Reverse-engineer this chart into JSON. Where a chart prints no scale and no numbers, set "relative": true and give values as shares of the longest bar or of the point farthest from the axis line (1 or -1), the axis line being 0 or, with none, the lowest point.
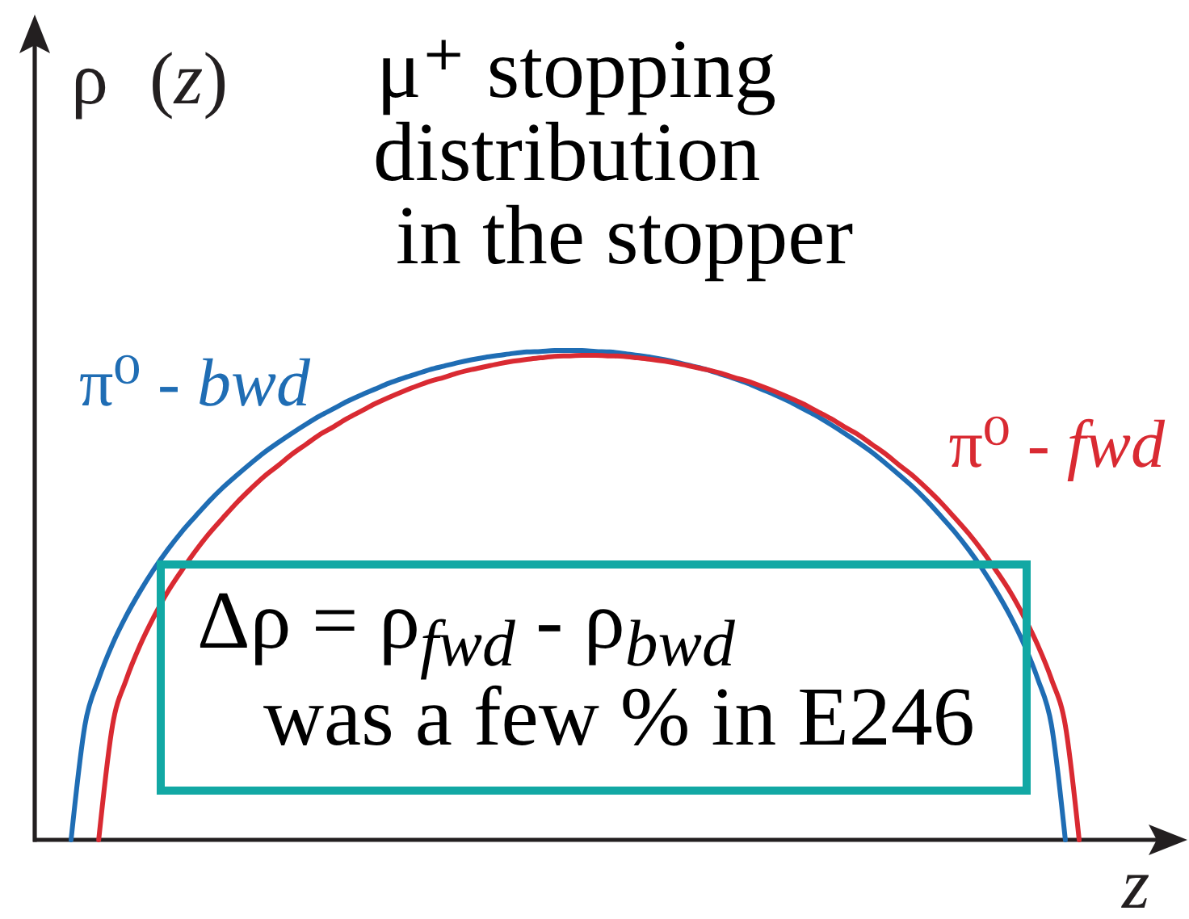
{
  "chart_data": {
    "type": "line",
    "relative": true,
    "title": "μ⁺ stopping\ndistribution\nin the stopper",
    "xlabel": "z",
    "ylabel": "ρ (z)",
    "categories": [
      null,
      null,
      null,
      null,
      null,
      null,
      null,
      null,
      null,
      null,
      null,
      null,
      null,
      null,
      null,
      null,
      null,
      null,
      null,
      null,
      null,
      null,
      null,
      null,
      null,
      null,
      null,
      null,
      null,
      null,
      null,
      null,
      null,
      null,
      null,
      null,
      null,
      null,
      null,
      null,
      null,
      null,
      null,
      null,
      null,
      null,
      null,
      null,
      null,
      null,
      null,
      null,
      null,
      null,
      null,
      null,
      null,
      null,
      null,
      null,
      null,
      null,
      null,
      null,
      null,
      null,
      null,
      null,
      null,
      null,
      null,
      null,
      null,
      null
    ],
    "series": [
      {
        "name": "π⁰ - bwd",
        "color": "#1f6db4",
        "values": [
          0,
          0.234,
          0.329,
          0.4,
          0.458,
          0.508,
          0.553,
          0.593,
          0.629,
          0.661,
          0.692,
          0.72,
          0.745,
          0.769,
          0.792,
          0.812,
          0.831,
          0.849,
          0.866,
          0.881,
          0.896,
          0.909,
          0.921,
          0.933,
          0.943,
          0.952,
          0.961,
          0.968,
          0.975,
          0.981,
          0.986,
          0.99,
          0.994,
          0.997,
          0.998,
          1,
          1,
          1,
          0.998,
          0.997,
          0.994,
          0.99,
          0.986,
          0.981,
          0.975,
          0.968,
          0.961,
          0.952,
          0.943,
          0.933,
          0.921,
          0.909,
          0.896,
          0.881,
          0.866,
          0.849,
          0.831,
          0.812,
          0.792,
          0.769,
          0.745,
          0.72,
          0.692,
          0.661,
          0.629,
          0.593,
          0.553,
          0.508,
          0.458,
          0.4,
          0.329,
          0.234,
          0,
          null
        ]
      },
      {
        "name": "π⁰ - fwd",
        "color": "#d92a32",
        "values": [
          null,
          null,
          0,
          0.234,
          0.328,
          0.398,
          0.456,
          0.507,
          0.55,
          0.59,
          0.626,
          0.658,
          0.689,
          0.717,
          0.743,
          0.765,
          0.788,
          0.808,
          0.828,
          0.844,
          0.861,
          0.876,
          0.891,
          0.904,
          0.916,
          0.927,
          0.937,
          0.945,
          0.954,
          0.961,
          0.967,
          0.973,
          0.978,
          0.982,
          0.985,
          0.988,
          0.989,
          0.99,
          0.99,
          0.989,
          0.988,
          0.985,
          0.982,
          0.978,
          0.973,
          0.967,
          0.961,
          0.954,
          0.945,
          0.937,
          0.927,
          0.916,
          0.904,
          0.891,
          0.876,
          0.861,
          0.844,
          0.828,
          0.808,
          0.788,
          0.765,
          0.743,
          0.717,
          0.689,
          0.658,
          0.626,
          0.59,
          0.55,
          0.507,
          0.456,
          0.398,
          0.328,
          0.234,
          0
        ]
      }
    ],
    "annotations": [
      "Δρ = ρ$_{fwd}$ - ρ$_{bwd}$\nwas a few % in E246"
    ]
  }
}
